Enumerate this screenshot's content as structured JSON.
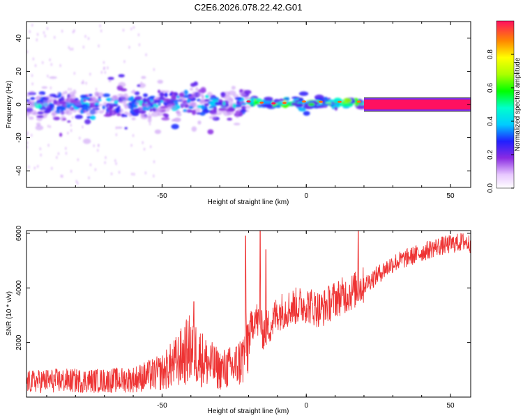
{
  "title": "C2E6.2026.078.22.42.G01",
  "chart_data": [
    {
      "type": "heatmap",
      "xlabel": "Height of straight line (km)",
      "ylabel": "Frequency (Hz)",
      "xlim": [
        -97,
        57
      ],
      "ylim": [
        -50,
        50
      ],
      "xticks": [
        -50,
        0,
        50
      ],
      "yticks": [
        -40,
        -20,
        0,
        20,
        40
      ],
      "colorbar": {
        "label": "Normalized spectral amplitude",
        "range": [
          0,
          1
        ],
        "ticks": [
          0.0,
          0.2,
          0.4,
          0.6,
          0.8
        ]
      },
      "bands": [
        {
          "x_start": -97,
          "x_end": -20,
          "f_center": 0,
          "f_halfwidth": 12,
          "amplitude_range": [
            0.05,
            0.5
          ],
          "pattern": "scattered blobs"
        },
        {
          "x_start": -20,
          "x_end": 20,
          "f_center": 1,
          "f_halfwidth": 4,
          "amplitude_range": [
            0.2,
            0.85
          ],
          "pattern": "narrowing blobs"
        },
        {
          "x_start": 20,
          "x_end": 57,
          "f_center": 0,
          "f_halfwidth": 1.5,
          "amplitude_range": [
            0.95,
            1.0
          ],
          "pattern": "continuous line"
        }
      ]
    },
    {
      "type": "line",
      "xlabel": "Height of straight line (km)",
      "ylabel": "SNR (10 * v/v)",
      "xlim": [
        -97,
        57
      ],
      "ylim": [
        0,
        6100
      ],
      "xticks": [
        -50,
        0,
        50
      ],
      "yticks": [
        2000,
        4000,
        6000
      ],
      "color": "#ee3333",
      "series": [
        {
          "x": [
            -97,
            -90,
            -80,
            -70,
            -60,
            -50,
            -45,
            -40,
            -35,
            -30,
            -25,
            -22,
            -20,
            -18,
            -15,
            -12,
            -10,
            -5,
            0,
            5,
            10,
            15,
            18,
            20,
            25,
            30,
            35,
            40,
            45,
            50,
            55,
            57
          ],
          "y": [
            550,
            600,
            600,
            600,
            650,
            900,
            1300,
            1800,
            1300,
            1000,
            1100,
            1400,
            2100,
            3000,
            2400,
            2700,
            3100,
            3300,
            3400,
            3200,
            3600,
            3800,
            4000,
            4100,
            4500,
            4900,
            5100,
            5300,
            5500,
            5600,
            5700,
            5600
          ]
        }
      ],
      "spikes": [
        {
          "x": -39,
          "y": 3500
        },
        {
          "x": -21,
          "y": 5900
        },
        {
          "x": -16,
          "y": 6100
        },
        {
          "x": -14,
          "y": 5400
        },
        {
          "x": 18,
          "y": 6100
        }
      ]
    }
  ]
}
